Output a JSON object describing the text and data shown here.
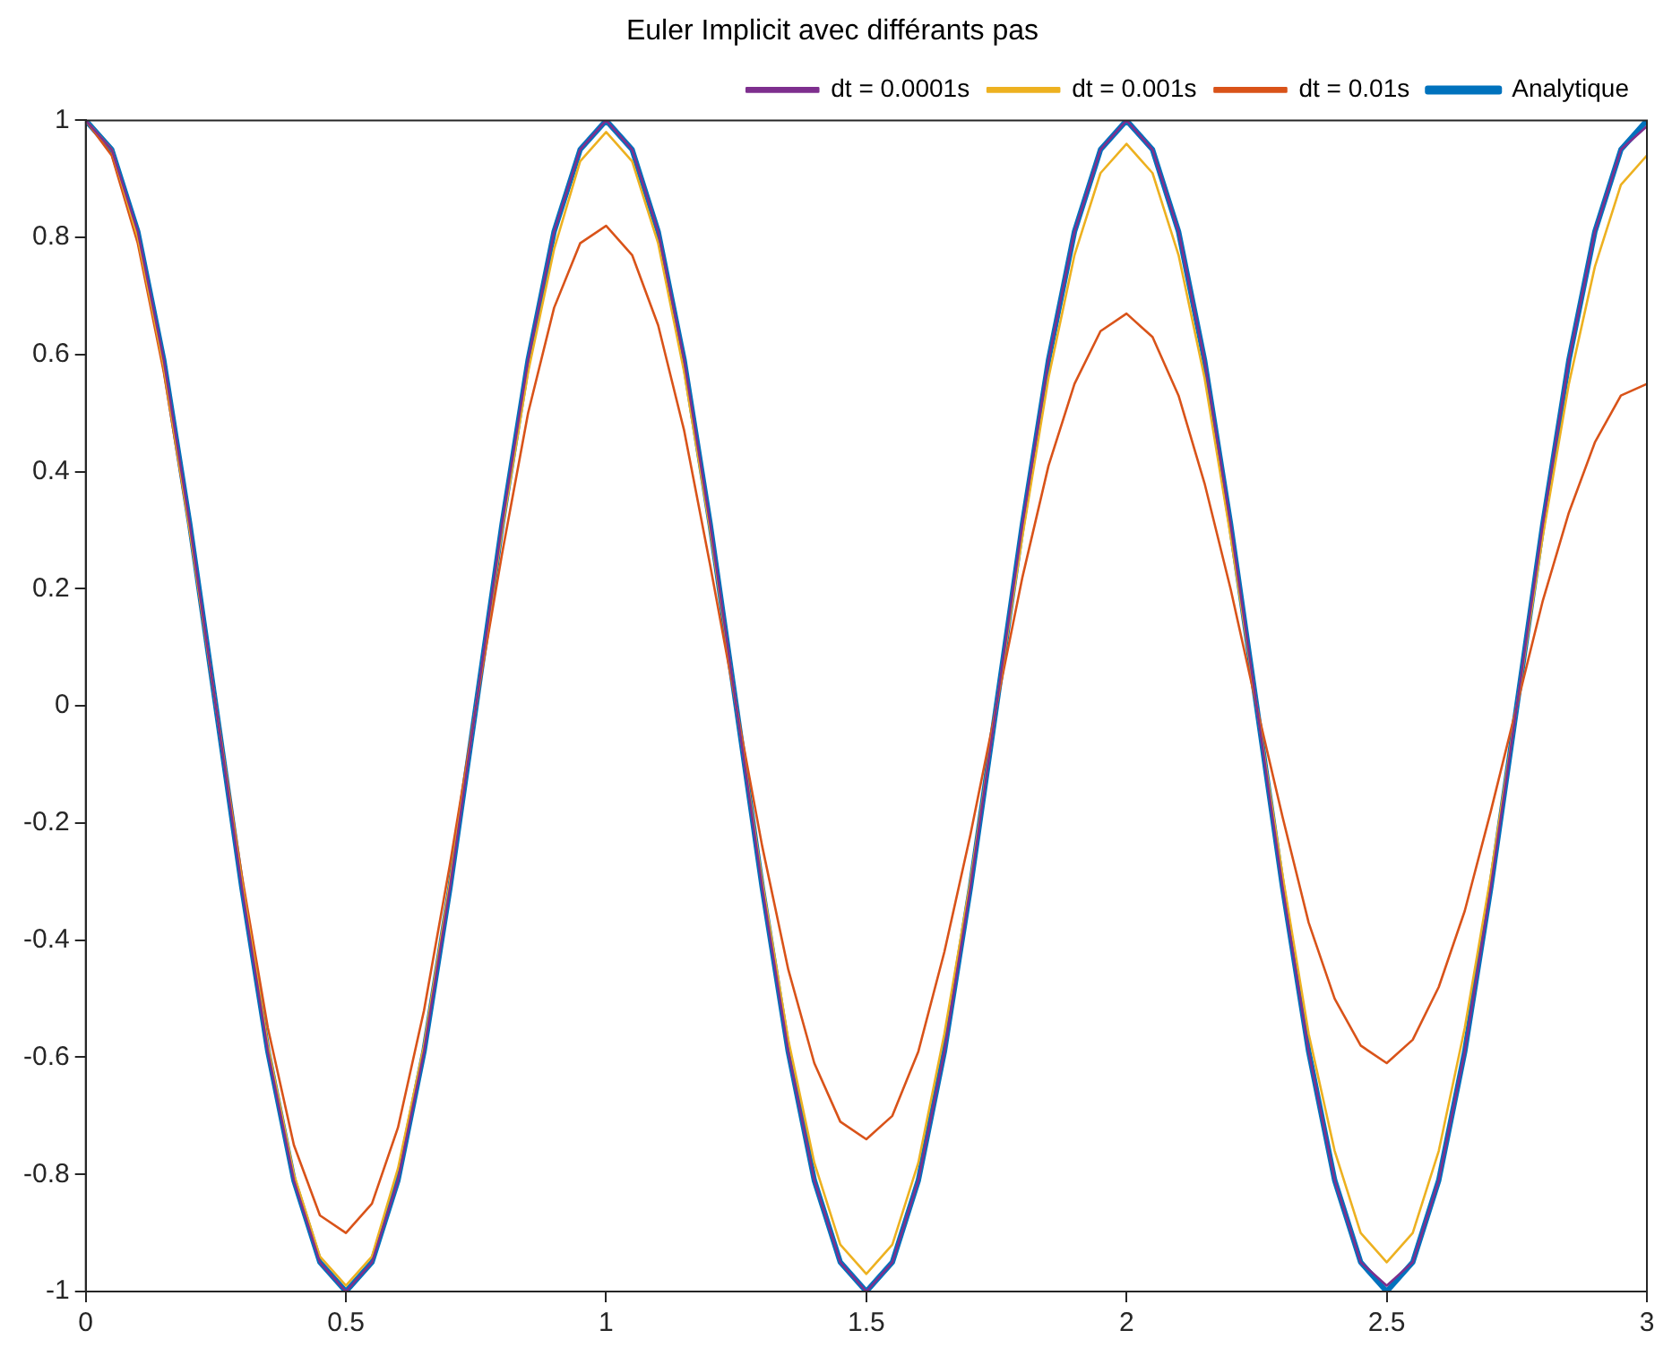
{
  "chart_data": {
    "type": "line",
    "title": "Euler Implicit avec différants pas",
    "xlim": [
      0,
      3
    ],
    "ylim": [
      -1,
      1
    ],
    "xticks": [
      0,
      0.5,
      1,
      1.5,
      2,
      2.5,
      3
    ],
    "yticks": [
      -1,
      -0.8,
      -0.6,
      -0.4,
      -0.2,
      0,
      0.2,
      0.4,
      0.6,
      0.8,
      1
    ],
    "legend": "top right",
    "marker": "none",
    "line_style": "solid",
    "x": [
      0,
      0.05,
      0.1,
      0.15,
      0.2,
      0.25,
      0.3,
      0.35,
      0.4,
      0.45,
      0.5,
      0.55,
      0.6,
      0.65,
      0.7,
      0.75,
      0.8,
      0.85,
      0.9,
      0.95,
      1,
      1.05,
      1.1,
      1.15,
      1.2,
      1.25,
      1.3,
      1.35,
      1.4,
      1.45,
      1.5,
      1.55,
      1.6,
      1.65,
      1.7,
      1.75,
      1.8,
      1.85,
      1.9,
      1.95,
      2,
      2.05,
      2.1,
      2.15,
      2.2,
      2.25,
      2.3,
      2.35,
      2.4,
      2.45,
      2.5,
      2.55,
      2.6,
      2.65,
      2.7,
      2.75,
      2.8,
      2.85,
      2.9,
      2.95,
      3
    ],
    "series": [
      {
        "name": "Analytique",
        "color": "#0072bd",
        "values": [
          1,
          0.95,
          0.81,
          0.59,
          0.31,
          0,
          -0.31,
          -0.59,
          -0.81,
          -0.95,
          -1,
          -0.95,
          -0.81,
          -0.59,
          -0.31,
          0,
          0.31,
          0.59,
          0.81,
          0.95,
          1,
          0.95,
          0.81,
          0.59,
          0.31,
          0,
          -0.31,
          -0.59,
          -0.81,
          -0.95,
          -1,
          -0.95,
          -0.81,
          -0.59,
          -0.31,
          0,
          0.31,
          0.59,
          0.81,
          0.95,
          1,
          0.95,
          0.81,
          0.59,
          0.31,
          0,
          -0.31,
          -0.59,
          -0.81,
          -0.95,
          -1,
          -0.95,
          -0.81,
          -0.59,
          -0.31,
          0,
          0.31,
          0.59,
          0.81,
          0.95,
          1
        ]
      },
      {
        "name": "dt = 0.01s",
        "color": "#d95319",
        "values": [
          1,
          0.94,
          0.79,
          0.57,
          0.3,
          0,
          -0.29,
          -0.55,
          -0.75,
          -0.87,
          -0.9,
          -0.85,
          -0.72,
          -0.52,
          -0.27,
          0,
          0.26,
          0.5,
          0.68,
          0.79,
          0.82,
          0.77,
          0.65,
          0.47,
          0.24,
          0,
          -0.24,
          -0.45,
          -0.61,
          -0.71,
          -0.74,
          -0.7,
          -0.59,
          -0.42,
          -0.22,
          0,
          0.22,
          0.41,
          0.55,
          0.64,
          0.67,
          0.63,
          0.53,
          0.38,
          0.2,
          0,
          -0.19,
          -0.37,
          -0.5,
          -0.58,
          -0.61,
          -0.57,
          -0.48,
          -0.35,
          -0.18,
          0,
          0.18,
          0.33,
          0.45,
          0.53,
          0.55
        ]
      },
      {
        "name": "dt = 0.001s",
        "color": "#edb120",
        "values": [
          1,
          0.95,
          0.8,
          0.58,
          0.3,
          0,
          -0.3,
          -0.58,
          -0.8,
          -0.94,
          -0.99,
          -0.94,
          -0.79,
          -0.58,
          -0.3,
          0,
          0.3,
          0.57,
          0.78,
          0.93,
          0.98,
          0.93,
          0.79,
          0.57,
          0.3,
          0,
          -0.3,
          -0.57,
          -0.78,
          -0.92,
          -0.97,
          -0.92,
          -0.78,
          -0.56,
          -0.3,
          0,
          0.29,
          0.56,
          0.77,
          0.91,
          0.96,
          0.91,
          0.77,
          0.56,
          0.29,
          0,
          -0.29,
          -0.56,
          -0.76,
          -0.9,
          -0.95,
          -0.9,
          -0.76,
          -0.55,
          -0.29,
          0,
          0.29,
          0.55,
          0.75,
          0.89,
          0.94
        ]
      },
      {
        "name": "dt = 0.0001s",
        "color": "#7e2f8e",
        "values": [
          1,
          0.95,
          0.81,
          0.59,
          0.31,
          0,
          -0.31,
          -0.59,
          -0.81,
          -0.95,
          -1,
          -0.95,
          -0.81,
          -0.59,
          -0.31,
          0,
          0.31,
          0.59,
          0.81,
          0.95,
          1,
          0.95,
          0.81,
          0.59,
          0.31,
          0,
          -0.31,
          -0.59,
          -0.81,
          -0.95,
          -1,
          -0.95,
          -0.81,
          -0.59,
          -0.31,
          0,
          0.31,
          0.59,
          0.81,
          0.95,
          1,
          0.95,
          0.81,
          0.59,
          0.31,
          0,
          -0.31,
          -0.59,
          -0.81,
          -0.95,
          -0.99,
          -0.95,
          -0.81,
          -0.59,
          -0.31,
          0,
          0.31,
          0.59,
          0.81,
          0.95,
          0.99
        ]
      }
    ]
  }
}
